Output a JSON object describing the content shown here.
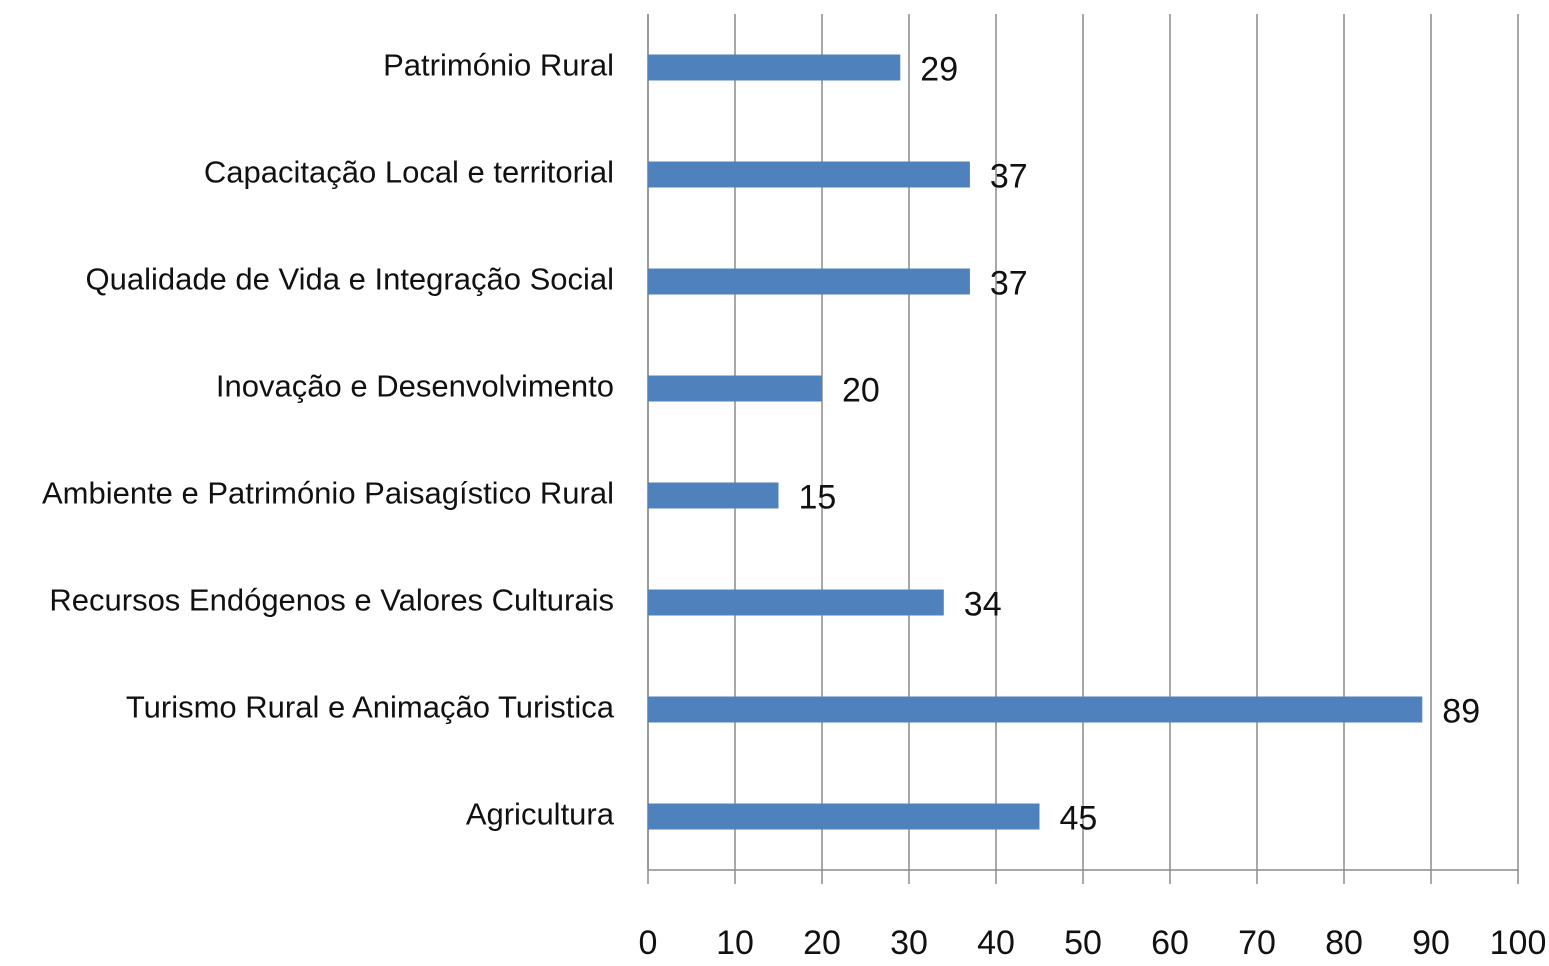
{
  "chart_data": {
    "type": "barh",
    "categories": [
      "Património Rural",
      "Capacitação Local e territorial",
      "Qualidade de Vida e Integração Social",
      "Inovação e Desenvolvimento",
      "Ambiente e Património Paisagístico Rural",
      "Recursos Endógenos e Valores Culturais",
      "Turismo Rural e Animação Turistica",
      "Agricultura"
    ],
    "values": [
      29,
      37,
      37,
      20,
      15,
      34,
      89,
      45
    ],
    "color": "#4f81bd",
    "xlim": [
      0,
      100
    ],
    "xticks": [
      0,
      10,
      20,
      30,
      40,
      50,
      60,
      70,
      80,
      90,
      100
    ],
    "grid": true
  }
}
